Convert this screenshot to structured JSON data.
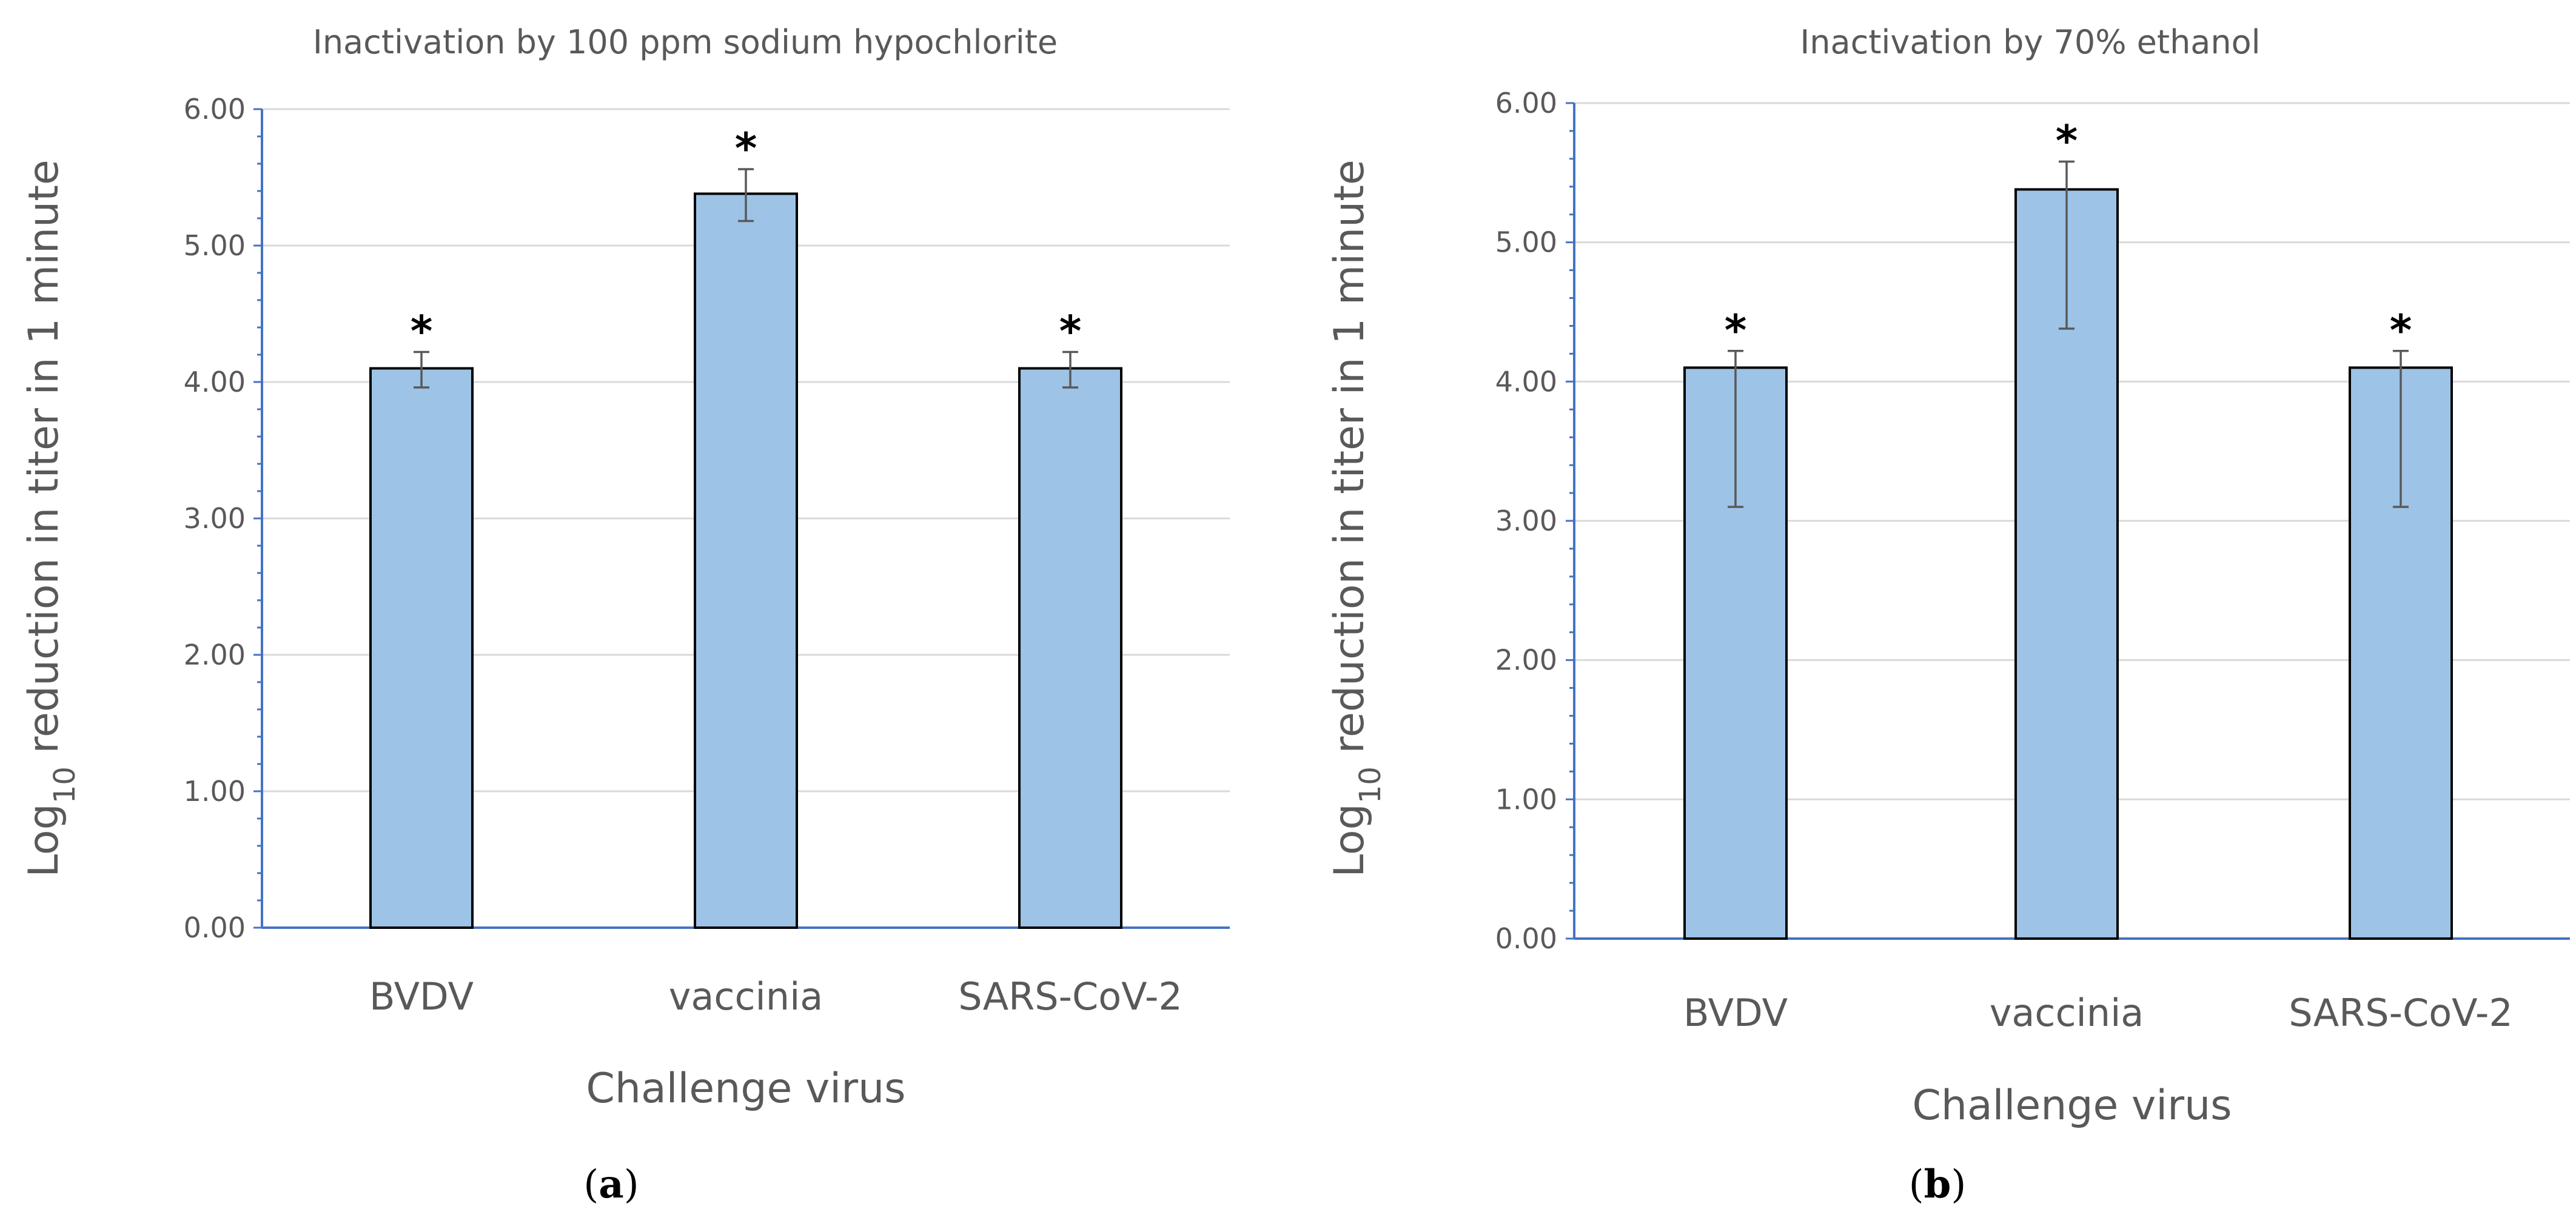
{
  "chart_data": [
    {
      "type": "bar",
      "title": "Inactivation by 100 ppm sodium hypochlorite",
      "xlabel": "Challenge virus",
      "ylabel_prefix": "Log",
      "ylabel_sub": "10",
      "ylabel_suffix": " reduction in titer in 1 minute",
      "categories": [
        "BVDV",
        "vaccinia",
        "SARS-CoV-2"
      ],
      "values": [
        4.1,
        5.38,
        4.1
      ],
      "error_upper": [
        0.12,
        0.18,
        0.12
      ],
      "error_lower": [
        0.14,
        0.2,
        0.14
      ],
      "significance": [
        "*",
        "*",
        "*"
      ],
      "ylim": [
        0,
        6
      ],
      "yticks": [
        "0.00",
        "1.00",
        "2.00",
        "3.00",
        "4.00",
        "5.00",
        "6.00"
      ],
      "grid": true,
      "panel_open": "(",
      "panel_letter": "a",
      "panel_close": ")"
    },
    {
      "type": "bar",
      "title": "Inactivation by 70% ethanol",
      "xlabel": "Challenge virus",
      "ylabel_prefix": "Log",
      "ylabel_sub": "10",
      "ylabel_suffix": " reduction in titer in 1 minute",
      "categories": [
        "BVDV",
        "vaccinia",
        "SARS-CoV-2"
      ],
      "values": [
        4.1,
        5.38,
        4.1
      ],
      "error_upper": [
        0.12,
        0.2,
        0.12
      ],
      "error_lower": [
        1.0,
        1.0,
        1.0
      ],
      "significance": [
        "*",
        "*",
        "*"
      ],
      "ylim": [
        0,
        6
      ],
      "yticks": [
        "0.00",
        "1.00",
        "2.00",
        "3.00",
        "4.00",
        "5.00",
        "6.00"
      ],
      "grid": true,
      "panel_open": "(",
      "panel_letter": "b",
      "panel_close": ")"
    }
  ],
  "colors": {
    "bar_fill": "#9dc3e6",
    "axis": "#4472c4",
    "grid": "#d9d9d9",
    "text": "#595959"
  }
}
